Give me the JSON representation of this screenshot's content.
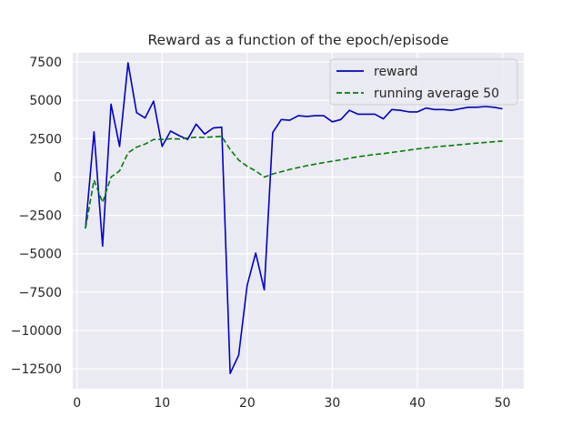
{
  "chart_data": {
    "type": "line",
    "title": "Reward as a function of the epoch/episode",
    "xlabel": "",
    "ylabel": "",
    "xlim": [
      -0.5,
      52.5
    ],
    "ylim": [
      -13800,
      8100
    ],
    "x_ticks": [
      0,
      10,
      20,
      30,
      40,
      50
    ],
    "y_ticks": [
      7500,
      5000,
      2500,
      0,
      -2500,
      -5000,
      -7500,
      -10000,
      -12500
    ],
    "grid": true,
    "legend_position": "top-right",
    "x": [
      1,
      2,
      3,
      4,
      5,
      6,
      7,
      8,
      9,
      10,
      11,
      12,
      13,
      14,
      15,
      16,
      17,
      18,
      19,
      20,
      21,
      22,
      23,
      24,
      25,
      26,
      27,
      28,
      29,
      30,
      31,
      32,
      33,
      34,
      35,
      36,
      37,
      38,
      39,
      40,
      41,
      42,
      43,
      44,
      45,
      46,
      47,
      48,
      49,
      50
    ],
    "series": [
      {
        "name": "reward",
        "color": "#0000cc",
        "style": "solid",
        "values": [
          -3350,
          2950,
          -4500,
          4750,
          2000,
          7450,
          4200,
          3850,
          4950,
          2000,
          3000,
          2700,
          2450,
          3450,
          2800,
          3200,
          3250,
          -12800,
          -11600,
          -7050,
          -4950,
          -7350,
          2900,
          3750,
          3700,
          4000,
          3950,
          4000,
          4000,
          3600,
          3750,
          4350,
          4100,
          4100,
          4100,
          3800,
          4400,
          4350,
          4250,
          4250,
          4500,
          4400,
          4400,
          4350,
          4450,
          4550,
          4550,
          4600,
          4550,
          4450
        ]
      },
      {
        "name": "running average 50",
        "color": "#008000",
        "style": "dashed",
        "values": [
          -3350,
          -200,
          -1650,
          0,
          400,
          1580,
          1950,
          2150,
          2450,
          2450,
          2500,
          2480,
          2550,
          2600,
          2580,
          2620,
          2650,
          1800,
          1100,
          700,
          400,
          0,
          200,
          350,
          500,
          620,
          740,
          840,
          940,
          1030,
          1120,
          1230,
          1320,
          1400,
          1470,
          1530,
          1610,
          1680,
          1760,
          1830,
          1900,
          1960,
          2010,
          2060,
          2110,
          2160,
          2210,
          2260,
          2300,
          2350
        ]
      }
    ]
  }
}
